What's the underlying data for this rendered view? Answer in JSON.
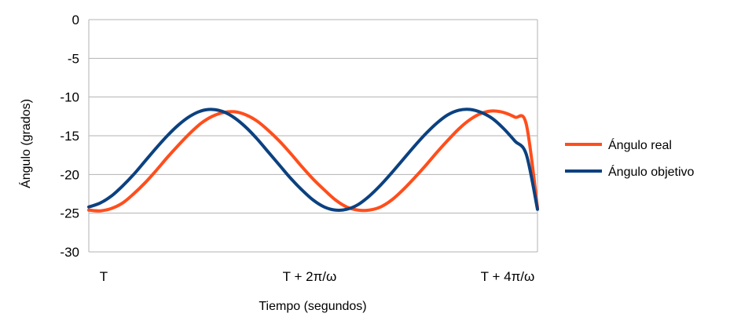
{
  "chart_data": {
    "type": "line",
    "title": "",
    "xlabel": "Tiempo (segundos)",
    "ylabel": "Ángulo (grados)",
    "ylim": [
      -30,
      0
    ],
    "yticks": [
      0,
      -5,
      -10,
      -15,
      -20,
      -25,
      -30
    ],
    "xlim": [
      0,
      4
    ],
    "xtick_labels": [
      "T",
      "T + 2π/ω",
      "T + 4π/ω"
    ],
    "grid": "horizontal",
    "legend_position": "right",
    "series": [
      {
        "name": "Ángulo real",
        "color": "#ff4e1c",
        "x": [
          0,
          0.1,
          0.2,
          0.3,
          0.4,
          0.5,
          0.6,
          0.7,
          0.8,
          0.9,
          1.0,
          1.1,
          1.2,
          1.3,
          1.4,
          1.5,
          1.6,
          1.7,
          1.8,
          1.9,
          2.0,
          2.1,
          2.2,
          2.3,
          2.4,
          2.5,
          2.6,
          2.7,
          2.8,
          2.9,
          3.0,
          3.1,
          3.2,
          3.3,
          3.4,
          3.5,
          3.6,
          3.7,
          3.8,
          3.9,
          4.0
        ],
        "values": [
          -24.6,
          -24.7,
          -24.4,
          -23.7,
          -22.5,
          -21.1,
          -19.5,
          -17.8,
          -16.2,
          -14.7,
          -13.4,
          -12.5,
          -12.0,
          -11.9,
          -12.3,
          -13.1,
          -14.3,
          -15.7,
          -17.3,
          -19.0,
          -20.6,
          -22.0,
          -23.3,
          -24.2,
          -24.6,
          -24.6,
          -24.2,
          -23.3,
          -22.0,
          -20.5,
          -18.9,
          -17.2,
          -15.6,
          -14.1,
          -12.9,
          -12.1,
          -11.8,
          -12.0,
          -12.6,
          -13.5,
          -24.3
        ]
      },
      {
        "name": "Ángulo objetivo",
        "color": "#0b4180",
        "x": [
          0,
          0.1,
          0.2,
          0.3,
          0.4,
          0.5,
          0.6,
          0.7,
          0.8,
          0.9,
          1.0,
          1.1,
          1.2,
          1.3,
          1.4,
          1.5,
          1.6,
          1.7,
          1.8,
          1.9,
          2.0,
          2.1,
          2.2,
          2.3,
          2.4,
          2.5,
          2.6,
          2.7,
          2.8,
          2.9,
          3.0,
          3.1,
          3.2,
          3.3,
          3.4,
          3.5,
          3.6,
          3.7,
          3.8,
          3.9,
          4.0
        ],
        "values": [
          -24.2,
          -23.7,
          -22.8,
          -21.5,
          -20.0,
          -18.3,
          -16.6,
          -15.0,
          -13.6,
          -12.5,
          -11.8,
          -11.6,
          -11.9,
          -12.7,
          -13.9,
          -15.4,
          -17.1,
          -18.8,
          -20.5,
          -22.0,
          -23.3,
          -24.2,
          -24.6,
          -24.5,
          -23.9,
          -22.8,
          -21.4,
          -19.8,
          -18.1,
          -16.4,
          -14.8,
          -13.4,
          -12.3,
          -11.7,
          -11.6,
          -12.0,
          -12.8,
          -14.1,
          -15.7,
          -17.4,
          -24.5
        ]
      }
    ]
  }
}
